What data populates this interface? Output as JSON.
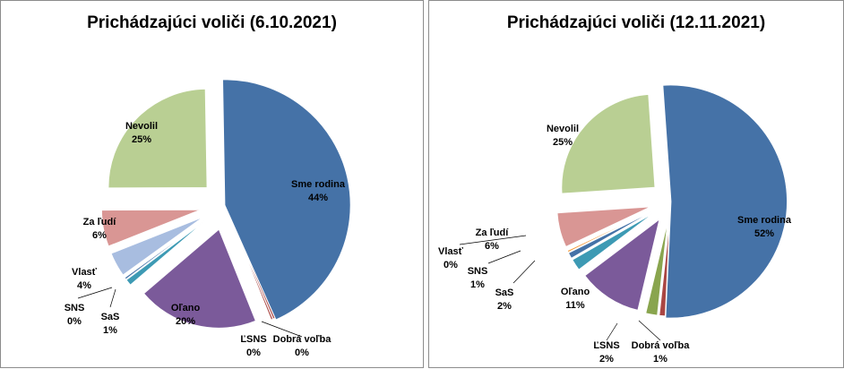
{
  "chart_data": [
    {
      "type": "pie",
      "title": "Prichádzajúci voliči (6.10.2021)",
      "exploded": true,
      "labels": [
        "Sme rodina",
        "Dobrá voľba",
        "ĽSNS",
        "Oľano",
        "SaS",
        "SNS",
        "Vlasť",
        "Za ľudí",
        "Nevolil"
      ],
      "values": [
        44,
        0.3,
        0.3,
        20,
        1,
        0.3,
        4,
        6,
        25
      ],
      "display_values": [
        "44%",
        "0%",
        "0%",
        "20%",
        "1%",
        "0%",
        "4%",
        "6%",
        "25%"
      ],
      "colors": [
        "#4572a7",
        "#aa4643",
        "#aa4643",
        "#7b5a9a",
        "#3d9ab4",
        "#4572a7",
        "#a8bde0",
        "#d99694",
        "#b9cf93"
      ]
    },
    {
      "type": "pie",
      "title": "Prichádzajúci voliči (12.11.2021)",
      "exploded": true,
      "labels": [
        "Sme rodina",
        "Dobrá voľba",
        "ĽSNS",
        "Oľano",
        "SaS",
        "SNS",
        "Vlasť",
        "Za ľudí",
        "Nevolil"
      ],
      "values": [
        52,
        1,
        2,
        11,
        2,
        1,
        0.3,
        6,
        25
      ],
      "display_values": [
        "52%",
        "1%",
        "2%",
        "11%",
        "2%",
        "1%",
        "0%",
        "6%",
        "25%"
      ],
      "colors": [
        "#4572a7",
        "#aa4643",
        "#89a54e",
        "#7b5a9a",
        "#3d9ab4",
        "#4572a7",
        "#f59a3c",
        "#d99694",
        "#b9cf93"
      ]
    }
  ]
}
